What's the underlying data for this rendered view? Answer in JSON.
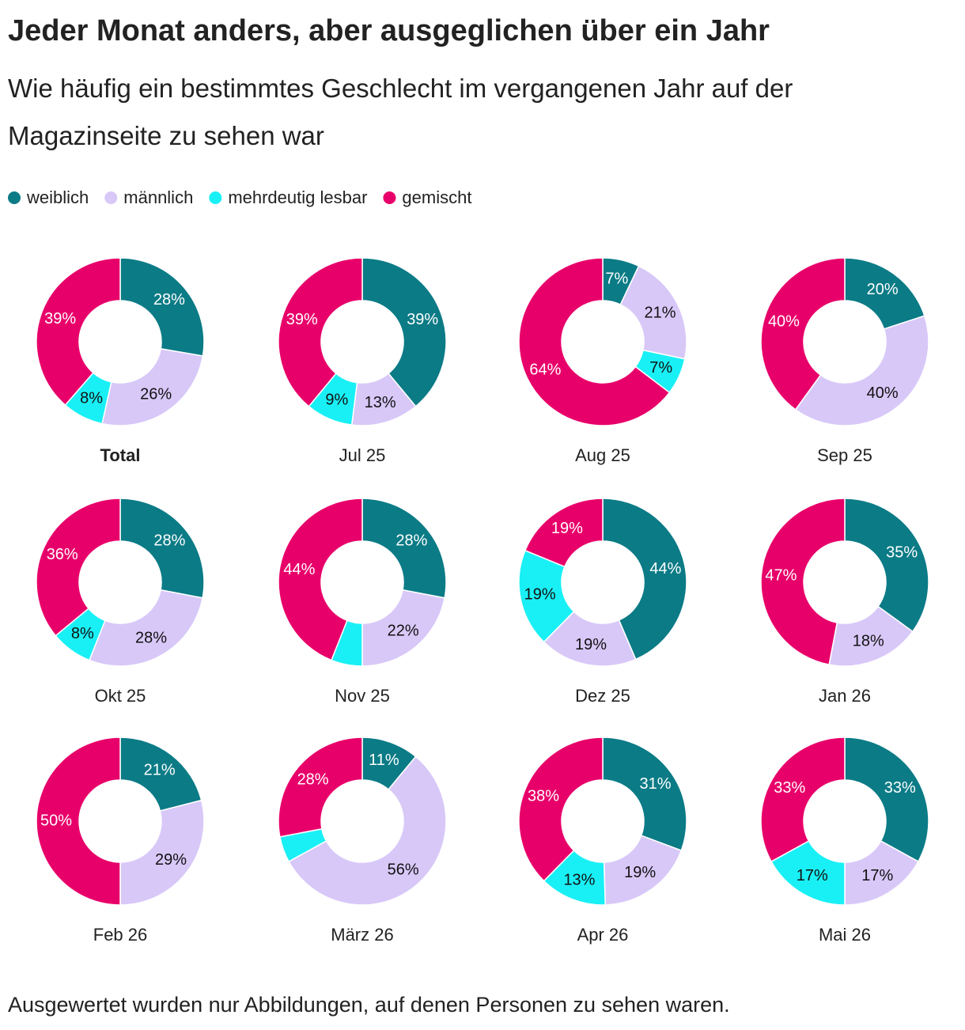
{
  "chart_data": {
    "type": "donut",
    "title": "Jeder Monat anders, aber ausgeglichen über ein Jahr",
    "subtitle": "Wie häufig ein bestimmtes Geschlecht im vergangenen Jahr auf der Magazinseite zu sehen war",
    "note": "Ausgewertet wurden nur Abbildungen, auf denen Personen zu sehen waren.",
    "categories": [
      "Total",
      "Jul 25",
      "Aug 25",
      "Sep 25",
      "Okt 25",
      "Nov 25",
      "Dez 25",
      "Jan 26",
      "Feb 26",
      "März 26",
      "Apr 26",
      "Mai 26"
    ],
    "series": [
      {
        "name": "weiblich",
        "color": "#0b7b86",
        "values": [
          28,
          39,
          7,
          20,
          28,
          28,
          44,
          35,
          21,
          11,
          31,
          33
        ],
        "value_labels": [
          "28%",
          "39%",
          "7%",
          "20%",
          "28%",
          "28%",
          "44%",
          "35%",
          "21%",
          "11%",
          "31%",
          "33%"
        ]
      },
      {
        "name": "männlich",
        "color": "#d8c8f8",
        "values": [
          26,
          13,
          21,
          40,
          28,
          22,
          19,
          18,
          29,
          56,
          19,
          17
        ],
        "value_labels": [
          "26%",
          "13%",
          "21%",
          "40%",
          "28%",
          "22%",
          "19%",
          "18%",
          "29%",
          "56%",
          "19%",
          "17%"
        ]
      },
      {
        "name": "mehrdeutig lesbar",
        "color": "#19f0f5",
        "values": [
          8,
          9,
          7,
          0,
          8,
          6,
          19,
          0,
          0,
          5,
          13,
          17
        ],
        "value_labels": [
          "8%",
          "9%",
          "7%",
          null,
          "8%",
          null,
          "19%",
          null,
          null,
          null,
          "13%",
          "17%"
        ]
      },
      {
        "name": "gemischt",
        "color": "#e8006a",
        "values": [
          39,
          39,
          64,
          40,
          36,
          44,
          19,
          47,
          50,
          28,
          38,
          33
        ],
        "value_labels": [
          "39%",
          "39%",
          "64%",
          "40%",
          "36%",
          "44%",
          "19%",
          "47%",
          "50%",
          "28%",
          "38%",
          "33%"
        ]
      }
    ]
  }
}
